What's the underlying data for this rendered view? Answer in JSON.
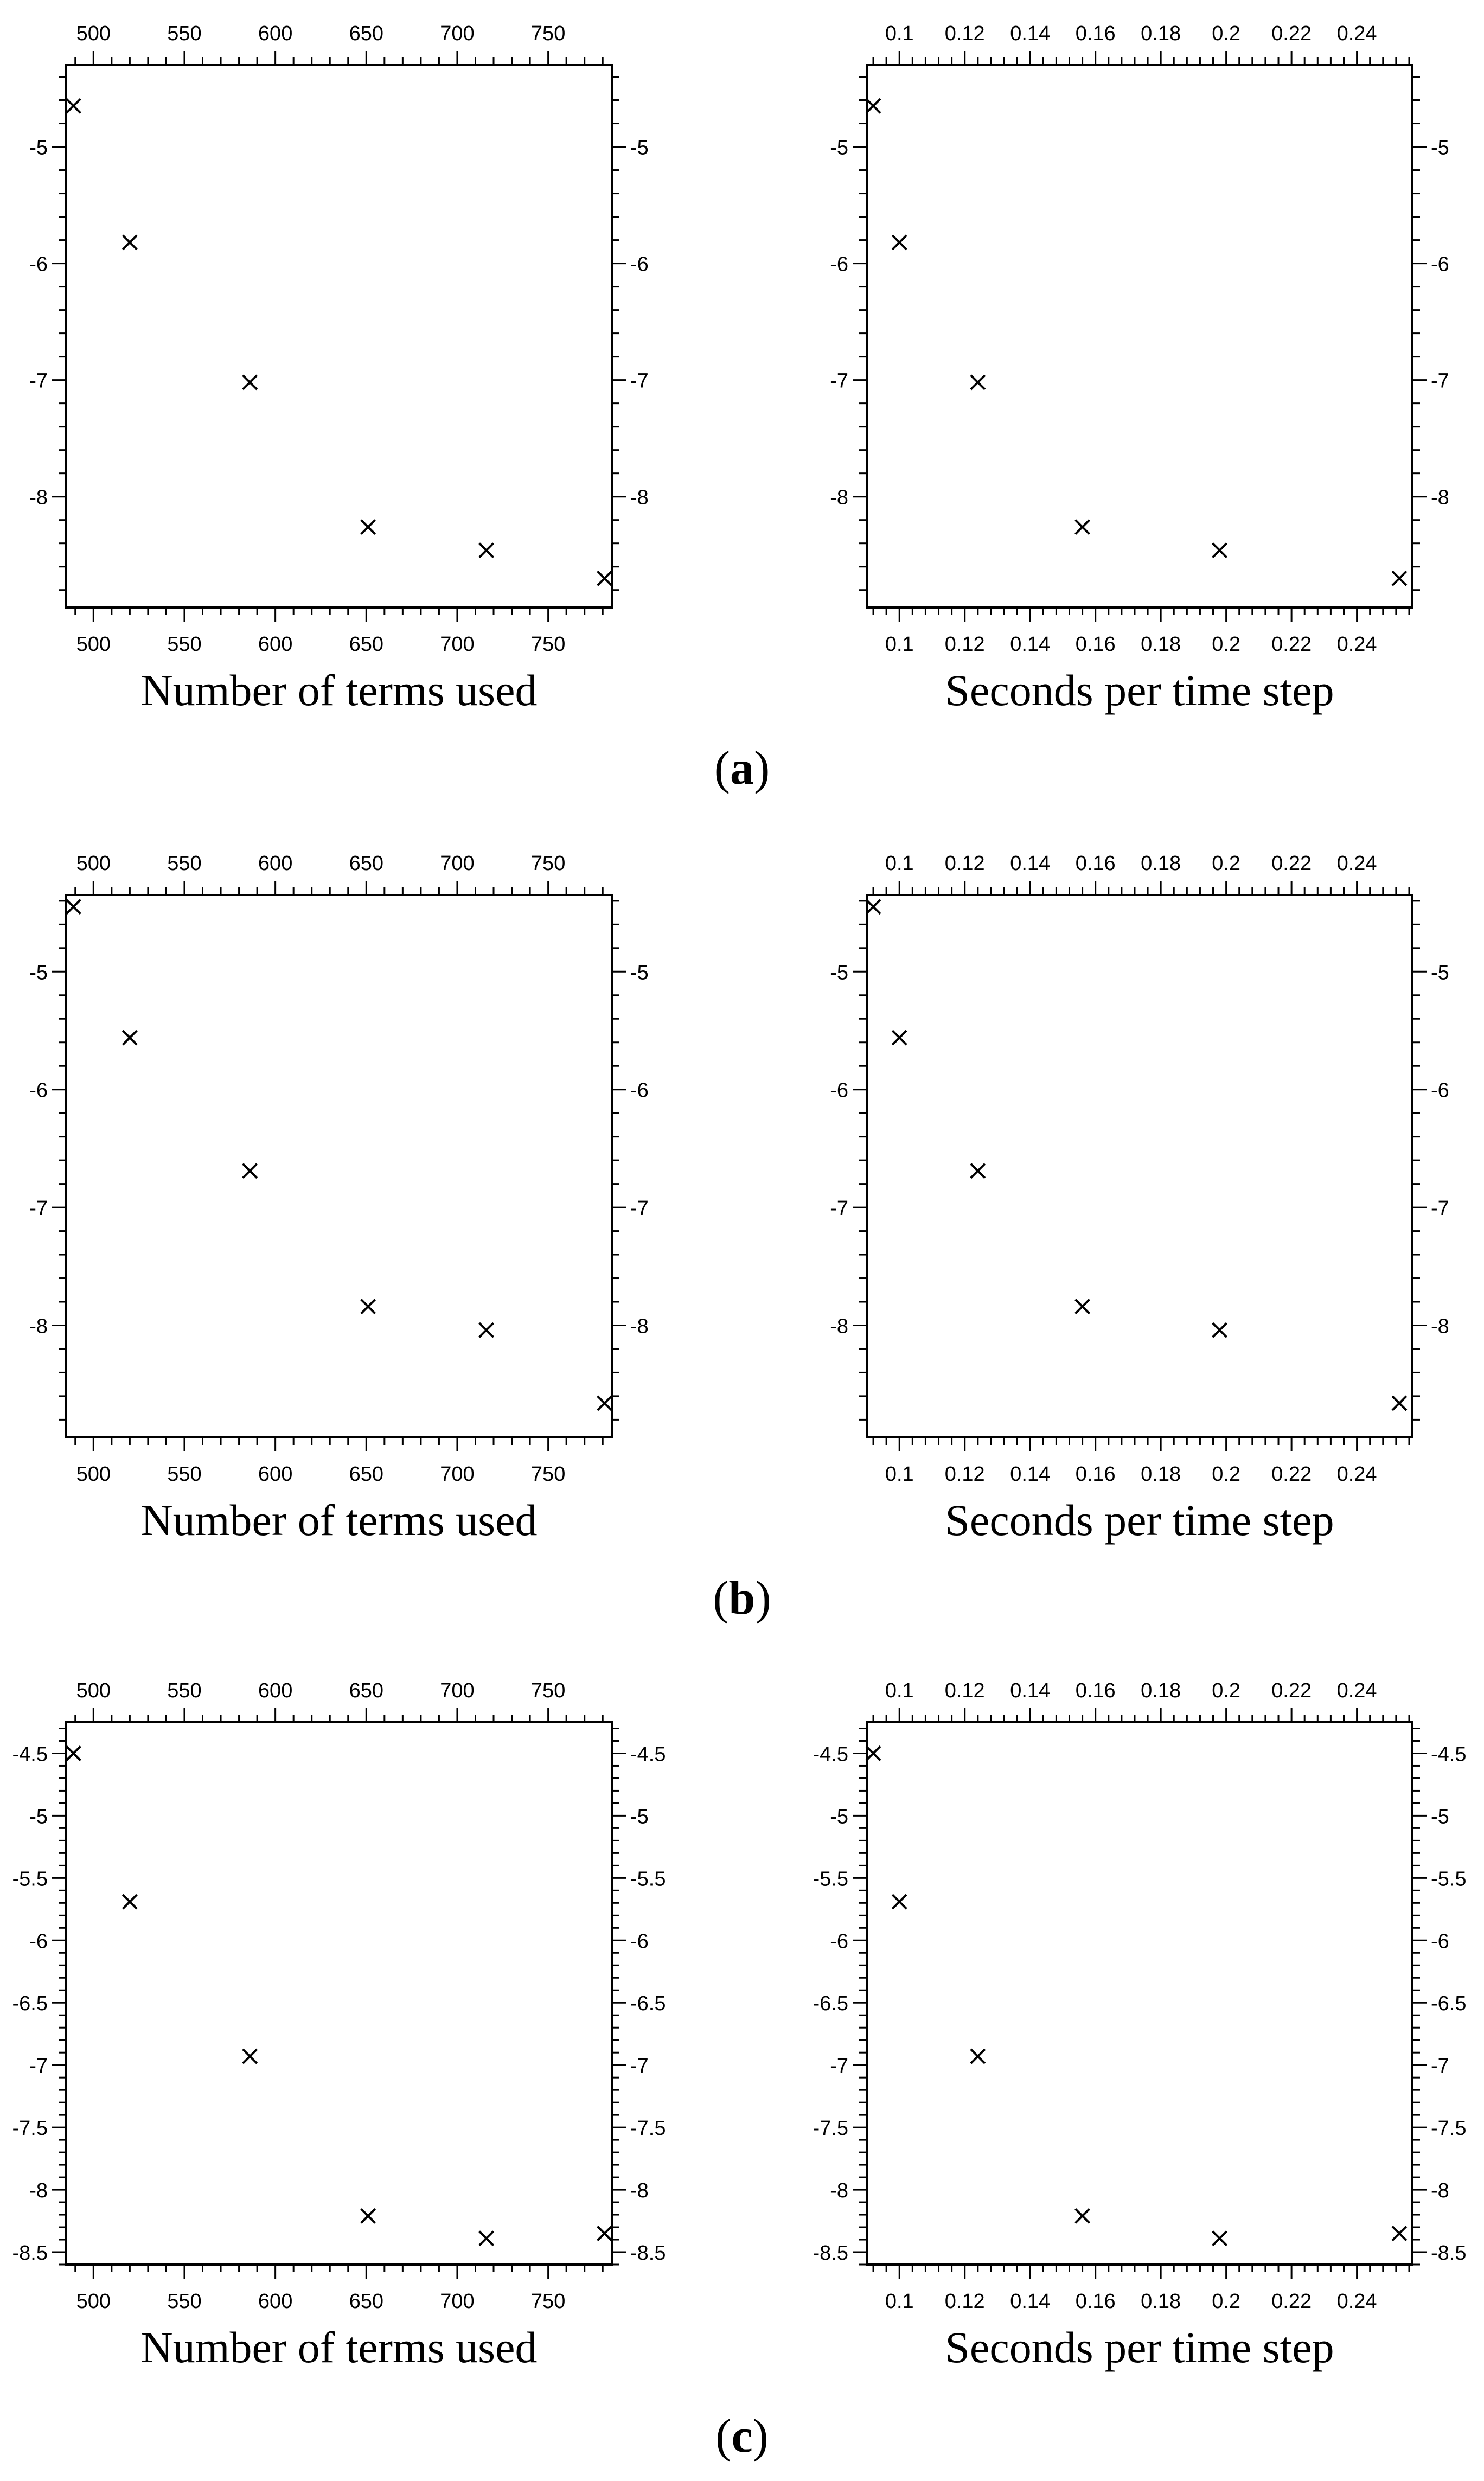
{
  "chart_data": [
    {
      "type": "scatter",
      "panel": "a",
      "xlabel": "Number of terms used",
      "xlim": [
        485,
        785
      ],
      "xticks": [
        500,
        550,
        600,
        650,
        700,
        750
      ],
      "xtick_labels": [
        "500",
        "550",
        "600",
        "650",
        "700",
        "750"
      ],
      "ylim": [
        -8.95,
        -4.3
      ],
      "yticks": [
        -5,
        -6,
        -7,
        -8
      ],
      "ytick_labels": [
        "-5",
        "-6",
        "-7",
        "-8"
      ],
      "grid": false,
      "marker": "x",
      "x": [
        489,
        520,
        586,
        651,
        716,
        781
      ],
      "y": [
        -4.65,
        -5.82,
        -7.02,
        -8.26,
        -8.46,
        -8.7
      ]
    },
    {
      "type": "scatter",
      "panel": "a",
      "xlabel": "Seconds per time step",
      "xlim": [
        0.09,
        0.257
      ],
      "xticks": [
        0.1,
        0.12,
        0.14,
        0.16,
        0.18,
        0.2,
        0.22,
        0.24
      ],
      "xtick_labels": [
        "0.1",
        "0.12",
        "0.14",
        "0.16",
        "0.18",
        "0.2",
        "0.22",
        "0.24"
      ],
      "ylim": [
        -8.95,
        -4.3
      ],
      "yticks": [
        -5,
        -6,
        -7,
        -8
      ],
      "ytick_labels": [
        "-5",
        "-6",
        "-7",
        "-8"
      ],
      "grid": false,
      "marker": "x",
      "x": [
        0.092,
        0.1,
        0.124,
        0.156,
        0.198,
        0.253
      ],
      "y": [
        -4.65,
        -5.82,
        -7.02,
        -8.26,
        -8.46,
        -8.7
      ]
    },
    {
      "type": "scatter",
      "panel": "b",
      "xlabel": "Number of terms used",
      "xlim": [
        485,
        785
      ],
      "xticks": [
        500,
        550,
        600,
        650,
        700,
        750
      ],
      "xtick_labels": [
        "500",
        "550",
        "600",
        "650",
        "700",
        "750"
      ],
      "ylim": [
        -8.95,
        -4.35
      ],
      "yticks": [
        -5,
        -6,
        -7,
        -8
      ],
      "ytick_labels": [
        "-5",
        "-6",
        "-7",
        "-8"
      ],
      "grid": false,
      "marker": "x",
      "x": [
        489,
        520,
        586,
        651,
        716,
        781
      ],
      "y": [
        -4.45,
        -5.56,
        -6.69,
        -7.84,
        -8.04,
        -8.66
      ]
    },
    {
      "type": "scatter",
      "panel": "b",
      "xlabel": "Seconds per time step",
      "xlim": [
        0.09,
        0.257
      ],
      "xticks": [
        0.1,
        0.12,
        0.14,
        0.16,
        0.18,
        0.2,
        0.22,
        0.24
      ],
      "xtick_labels": [
        "0.1",
        "0.12",
        "0.14",
        "0.16",
        "0.18",
        "0.2",
        "0.22",
        "0.24"
      ],
      "ylim": [
        -8.95,
        -4.35
      ],
      "yticks": [
        -5,
        -6,
        -7,
        -8
      ],
      "ytick_labels": [
        "-5",
        "-6",
        "-7",
        "-8"
      ],
      "grid": false,
      "marker": "x",
      "x": [
        0.092,
        0.1,
        0.124,
        0.156,
        0.198,
        0.253
      ],
      "y": [
        -4.45,
        -5.56,
        -6.69,
        -7.84,
        -8.04,
        -8.66
      ]
    },
    {
      "type": "scatter",
      "panel": "c",
      "xlabel": "Number of terms used",
      "xlim": [
        485,
        785
      ],
      "xticks": [
        500,
        550,
        600,
        650,
        700,
        750
      ],
      "xtick_labels": [
        "500",
        "550",
        "600",
        "650",
        "700",
        "750"
      ],
      "ylim": [
        -8.6,
        -4.25
      ],
      "yticks": [
        -4.5,
        -5,
        -5.5,
        -6,
        -6.5,
        -7,
        -7.5,
        -8,
        -8.5
      ],
      "ytick_labels": [
        "-4.5",
        "-5",
        "-5.5",
        "-6",
        "-6.5",
        "-7",
        "-7.5",
        "-8",
        "-8.5"
      ],
      "grid": false,
      "marker": "x",
      "x": [
        489,
        520,
        586,
        651,
        716,
        781
      ],
      "y": [
        -4.5,
        -5.69,
        -6.93,
        -8.21,
        -8.39,
        -8.35
      ]
    },
    {
      "type": "scatter",
      "panel": "c",
      "xlabel": "Seconds per time step",
      "xlim": [
        0.09,
        0.257
      ],
      "xticks": [
        0.1,
        0.12,
        0.14,
        0.16,
        0.18,
        0.2,
        0.22,
        0.24
      ],
      "xtick_labels": [
        "0.1",
        "0.12",
        "0.14",
        "0.16",
        "0.18",
        "0.2",
        "0.22",
        "0.24"
      ],
      "ylim": [
        -8.6,
        -4.25
      ],
      "yticks": [
        -4.5,
        -5,
        -5.5,
        -6,
        -6.5,
        -7,
        -7.5,
        -8,
        -8.5
      ],
      "ytick_labels": [
        "-4.5",
        "-5",
        "-5.5",
        "-6",
        "-6.5",
        "-7",
        "-7.5",
        "-8",
        "-8.5"
      ],
      "grid": false,
      "marker": "x",
      "x": [
        0.092,
        0.1,
        0.124,
        0.156,
        0.198,
        0.253
      ],
      "y": [
        -4.5,
        -5.69,
        -6.93,
        -8.21,
        -8.39,
        -8.35
      ]
    }
  ],
  "panel_labels": [
    {
      "open": "(",
      "letter": "a",
      "close": ")"
    },
    {
      "open": "(",
      "letter": "b",
      "close": ")"
    },
    {
      "open": "(",
      "letter": "c",
      "close": ")"
    }
  ]
}
